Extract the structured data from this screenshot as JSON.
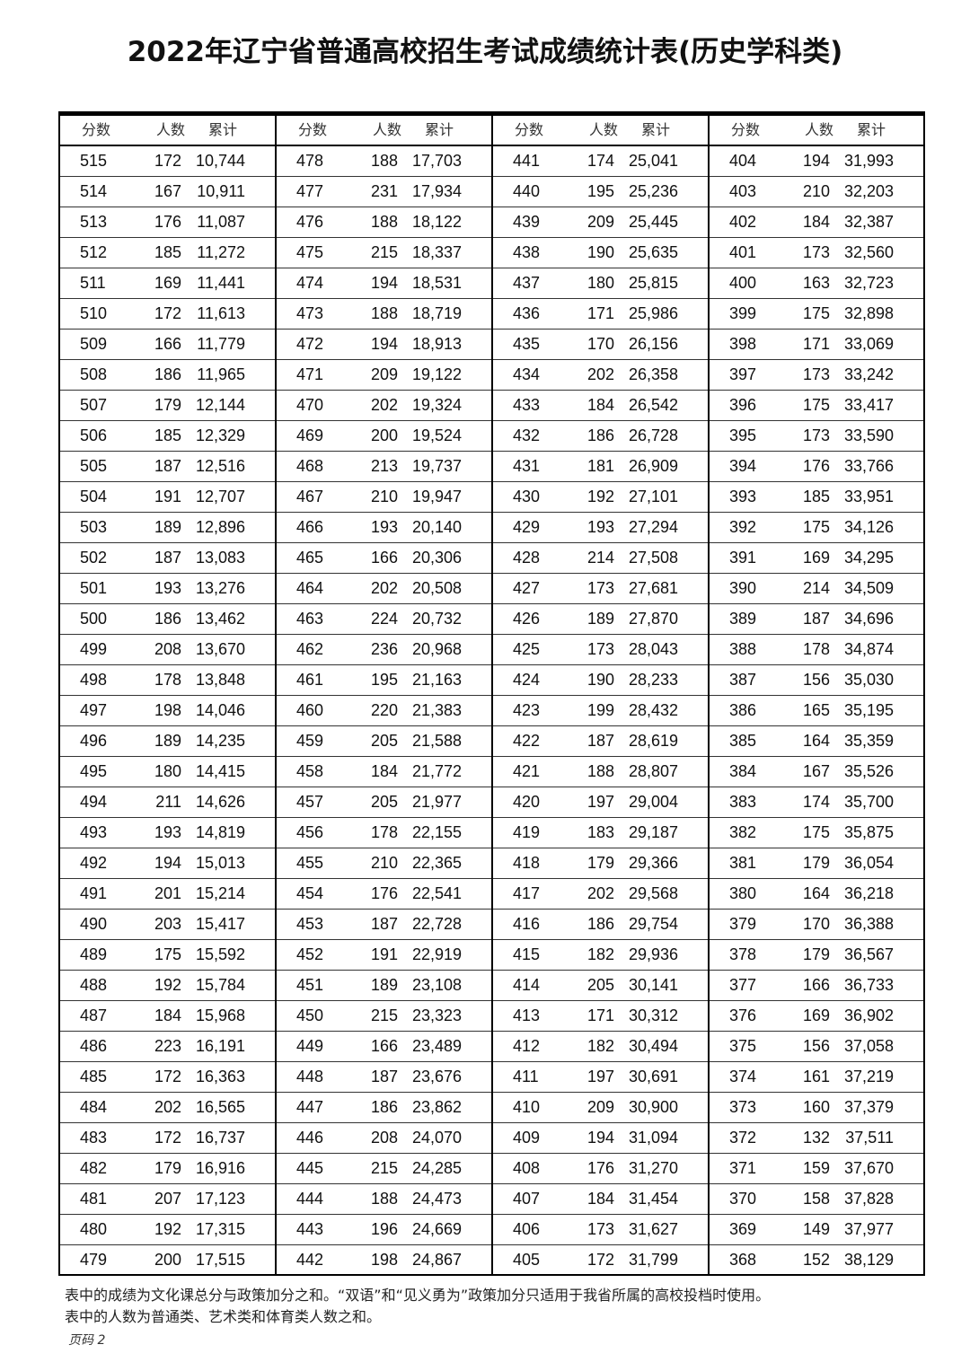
{
  "title": "2022年辽宁省普通高校招生考试成绩统计表(历史学科类)",
  "headers": [
    "分数",
    "人数",
    "累计"
  ],
  "groups": [
    [
      [
        "515",
        "172",
        "10,744"
      ],
      [
        "514",
        "167",
        "10,911"
      ],
      [
        "513",
        "176",
        "11,087"
      ],
      [
        "512",
        "185",
        "11,272"
      ],
      [
        "511",
        "169",
        "11,441"
      ],
      [
        "510",
        "172",
        "11,613"
      ],
      [
        "509",
        "166",
        "11,779"
      ],
      [
        "508",
        "186",
        "11,965"
      ],
      [
        "507",
        "179",
        "12,144"
      ],
      [
        "506",
        "185",
        "12,329"
      ],
      [
        "505",
        "187",
        "12,516"
      ],
      [
        "504",
        "191",
        "12,707"
      ],
      [
        "503",
        "189",
        "12,896"
      ],
      [
        "502",
        "187",
        "13,083"
      ],
      [
        "501",
        "193",
        "13,276"
      ],
      [
        "500",
        "186",
        "13,462"
      ],
      [
        "499",
        "208",
        "13,670"
      ],
      [
        "498",
        "178",
        "13,848"
      ],
      [
        "497",
        "198",
        "14,046"
      ],
      [
        "496",
        "189",
        "14,235"
      ],
      [
        "495",
        "180",
        "14,415"
      ],
      [
        "494",
        "211",
        "14,626"
      ],
      [
        "493",
        "193",
        "14,819"
      ],
      [
        "492",
        "194",
        "15,013"
      ],
      [
        "491",
        "201",
        "15,214"
      ],
      [
        "490",
        "203",
        "15,417"
      ],
      [
        "489",
        "175",
        "15,592"
      ],
      [
        "488",
        "192",
        "15,784"
      ],
      [
        "487",
        "184",
        "15,968"
      ],
      [
        "486",
        "223",
        "16,191"
      ],
      [
        "485",
        "172",
        "16,363"
      ],
      [
        "484",
        "202",
        "16,565"
      ],
      [
        "483",
        "172",
        "16,737"
      ],
      [
        "482",
        "179",
        "16,916"
      ],
      [
        "481",
        "207",
        "17,123"
      ],
      [
        "480",
        "192",
        "17,315"
      ],
      [
        "479",
        "200",
        "17,515"
      ]
    ],
    [
      [
        "478",
        "188",
        "17,703"
      ],
      [
        "477",
        "231",
        "17,934"
      ],
      [
        "476",
        "188",
        "18,122"
      ],
      [
        "475",
        "215",
        "18,337"
      ],
      [
        "474",
        "194",
        "18,531"
      ],
      [
        "473",
        "188",
        "18,719"
      ],
      [
        "472",
        "194",
        "18,913"
      ],
      [
        "471",
        "209",
        "19,122"
      ],
      [
        "470",
        "202",
        "19,324"
      ],
      [
        "469",
        "200",
        "19,524"
      ],
      [
        "468",
        "213",
        "19,737"
      ],
      [
        "467",
        "210",
        "19,947"
      ],
      [
        "466",
        "193",
        "20,140"
      ],
      [
        "465",
        "166",
        "20,306"
      ],
      [
        "464",
        "202",
        "20,508"
      ],
      [
        "463",
        "224",
        "20,732"
      ],
      [
        "462",
        "236",
        "20,968"
      ],
      [
        "461",
        "195",
        "21,163"
      ],
      [
        "460",
        "220",
        "21,383"
      ],
      [
        "459",
        "205",
        "21,588"
      ],
      [
        "458",
        "184",
        "21,772"
      ],
      [
        "457",
        "205",
        "21,977"
      ],
      [
        "456",
        "178",
        "22,155"
      ],
      [
        "455",
        "210",
        "22,365"
      ],
      [
        "454",
        "176",
        "22,541"
      ],
      [
        "453",
        "187",
        "22,728"
      ],
      [
        "452",
        "191",
        "22,919"
      ],
      [
        "451",
        "189",
        "23,108"
      ],
      [
        "450",
        "215",
        "23,323"
      ],
      [
        "449",
        "166",
        "23,489"
      ],
      [
        "448",
        "187",
        "23,676"
      ],
      [
        "447",
        "186",
        "23,862"
      ],
      [
        "446",
        "208",
        "24,070"
      ],
      [
        "445",
        "215",
        "24,285"
      ],
      [
        "444",
        "188",
        "24,473"
      ],
      [
        "443",
        "196",
        "24,669"
      ],
      [
        "442",
        "198",
        "24,867"
      ]
    ],
    [
      [
        "441",
        "174",
        "25,041"
      ],
      [
        "440",
        "195",
        "25,236"
      ],
      [
        "439",
        "209",
        "25,445"
      ],
      [
        "438",
        "190",
        "25,635"
      ],
      [
        "437",
        "180",
        "25,815"
      ],
      [
        "436",
        "171",
        "25,986"
      ],
      [
        "435",
        "170",
        "26,156"
      ],
      [
        "434",
        "202",
        "26,358"
      ],
      [
        "433",
        "184",
        "26,542"
      ],
      [
        "432",
        "186",
        "26,728"
      ],
      [
        "431",
        "181",
        "26,909"
      ],
      [
        "430",
        "192",
        "27,101"
      ],
      [
        "429",
        "193",
        "27,294"
      ],
      [
        "428",
        "214",
        "27,508"
      ],
      [
        "427",
        "173",
        "27,681"
      ],
      [
        "426",
        "189",
        "27,870"
      ],
      [
        "425",
        "173",
        "28,043"
      ],
      [
        "424",
        "190",
        "28,233"
      ],
      [
        "423",
        "199",
        "28,432"
      ],
      [
        "422",
        "187",
        "28,619"
      ],
      [
        "421",
        "188",
        "28,807"
      ],
      [
        "420",
        "197",
        "29,004"
      ],
      [
        "419",
        "183",
        "29,187"
      ],
      [
        "418",
        "179",
        "29,366"
      ],
      [
        "417",
        "202",
        "29,568"
      ],
      [
        "416",
        "186",
        "29,754"
      ],
      [
        "415",
        "182",
        "29,936"
      ],
      [
        "414",
        "205",
        "30,141"
      ],
      [
        "413",
        "171",
        "30,312"
      ],
      [
        "412",
        "182",
        "30,494"
      ],
      [
        "411",
        "197",
        "30,691"
      ],
      [
        "410",
        "209",
        "30,900"
      ],
      [
        "409",
        "194",
        "31,094"
      ],
      [
        "408",
        "176",
        "31,270"
      ],
      [
        "407",
        "184",
        "31,454"
      ],
      [
        "406",
        "173",
        "31,627"
      ],
      [
        "405",
        "172",
        "31,799"
      ]
    ],
    [
      [
        "404",
        "194",
        "31,993"
      ],
      [
        "403",
        "210",
        "32,203"
      ],
      [
        "402",
        "184",
        "32,387"
      ],
      [
        "401",
        "173",
        "32,560"
      ],
      [
        "400",
        "163",
        "32,723"
      ],
      [
        "399",
        "175",
        "32,898"
      ],
      [
        "398",
        "171",
        "33,069"
      ],
      [
        "397",
        "173",
        "33,242"
      ],
      [
        "396",
        "175",
        "33,417"
      ],
      [
        "395",
        "173",
        "33,590"
      ],
      [
        "394",
        "176",
        "33,766"
      ],
      [
        "393",
        "185",
        "33,951"
      ],
      [
        "392",
        "175",
        "34,126"
      ],
      [
        "391",
        "169",
        "34,295"
      ],
      [
        "390",
        "214",
        "34,509"
      ],
      [
        "389",
        "187",
        "34,696"
      ],
      [
        "388",
        "178",
        "34,874"
      ],
      [
        "387",
        "156",
        "35,030"
      ],
      [
        "386",
        "165",
        "35,195"
      ],
      [
        "385",
        "164",
        "35,359"
      ],
      [
        "384",
        "167",
        "35,526"
      ],
      [
        "383",
        "174",
        "35,700"
      ],
      [
        "382",
        "175",
        "35,875"
      ],
      [
        "381",
        "179",
        "36,054"
      ],
      [
        "380",
        "164",
        "36,218"
      ],
      [
        "379",
        "170",
        "36,388"
      ],
      [
        "378",
        "179",
        "36,567"
      ],
      [
        "377",
        "166",
        "36,733"
      ],
      [
        "376",
        "169",
        "36,902"
      ],
      [
        "375",
        "156",
        "37,058"
      ],
      [
        "374",
        "161",
        "37,219"
      ],
      [
        "373",
        "160",
        "37,379"
      ],
      [
        "372",
        "132",
        "37,511"
      ],
      [
        "371",
        "159",
        "37,670"
      ],
      [
        "370",
        "158",
        "37,828"
      ],
      [
        "369",
        "149",
        "37,977"
      ],
      [
        "368",
        "152",
        "38,129"
      ]
    ]
  ],
  "notes": [
    "表中的成绩为文化课总分与政策加分之和。“双语”和“见义勇为”政策加分只适用于我省所属的高校投档时使用。",
    "表中的人数为普通类、艺术类和体育类人数之和。"
  ],
  "page_label": "页码 2"
}
